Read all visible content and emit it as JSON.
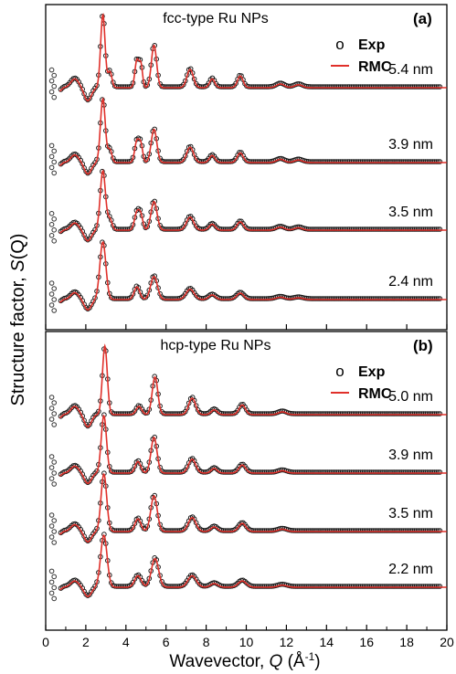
{
  "chart_data": {
    "type": "line",
    "ylabel_prefix": "Structure factor, ",
    "ylabel_symbol": "S",
    "ylabel_suffix": "(Q)",
    "xlabel_prefix": "Wavevector, ",
    "xlabel_symbol": "Q",
    "xlabel_suffix": " (Å",
    "xlabel_exp": "-1",
    "xlabel_close": ")",
    "xlim": [
      0,
      20
    ],
    "x_ticks": [
      0,
      2,
      4,
      6,
      8,
      10,
      12,
      14,
      16,
      18,
      20
    ],
    "panels": [
      {
        "label": "(a)",
        "title": "fcc-type Ru NPs",
        "legend": {
          "exp": "Exp",
          "rmc": "RMC",
          "exp_marker": "o"
        },
        "traces": [
          {
            "size": "5.4 nm",
            "peaks": [
              [
                2.85,
                1.0,
                0.11
              ],
              [
                3.2,
                0.22,
                0.1
              ],
              [
                4.55,
                0.38,
                0.1
              ],
              [
                4.75,
                0.3,
                0.08
              ],
              [
                5.4,
                0.58,
                0.13
              ],
              [
                7.2,
                0.25,
                0.16
              ],
              [
                8.3,
                0.12,
                0.13
              ],
              [
                9.7,
                0.16,
                0.14
              ],
              [
                11.7,
                0.05,
                0.2
              ],
              [
                12.6,
                0.04,
                0.2
              ]
            ]
          },
          {
            "size": "3.9 nm",
            "peaks": [
              [
                2.85,
                1.0,
                0.12
              ],
              [
                3.2,
                0.2,
                0.1
              ],
              [
                4.55,
                0.34,
                0.11
              ],
              [
                4.75,
                0.26,
                0.09
              ],
              [
                5.4,
                0.52,
                0.14
              ],
              [
                7.2,
                0.24,
                0.17
              ],
              [
                8.3,
                0.11,
                0.14
              ],
              [
                9.7,
                0.15,
                0.15
              ],
              [
                11.7,
                0.05,
                0.2
              ],
              [
                12.6,
                0.04,
                0.2
              ]
            ]
          },
          {
            "size": "3.5 nm",
            "peaks": [
              [
                2.85,
                1.0,
                0.13
              ],
              [
                3.2,
                0.18,
                0.11
              ],
              [
                4.55,
                0.3,
                0.12
              ],
              [
                4.75,
                0.22,
                0.1
              ],
              [
                5.4,
                0.48,
                0.15
              ],
              [
                7.2,
                0.22,
                0.18
              ],
              [
                8.3,
                0.1,
                0.15
              ],
              [
                9.7,
                0.14,
                0.16
              ],
              [
                11.7,
                0.05,
                0.2
              ],
              [
                12.6,
                0.04,
                0.2
              ]
            ]
          },
          {
            "size": "2.4 nm",
            "peaks": [
              [
                2.85,
                1.0,
                0.15
              ],
              [
                4.55,
                0.22,
                0.14
              ],
              [
                5.4,
                0.4,
                0.17
              ],
              [
                7.2,
                0.18,
                0.2
              ],
              [
                8.3,
                0.08,
                0.17
              ],
              [
                9.7,
                0.11,
                0.18
              ],
              [
                11.7,
                0.04,
                0.22
              ],
              [
                12.6,
                0.03,
                0.22
              ]
            ]
          }
        ]
      },
      {
        "label": "(b)",
        "title": "hcp-type Ru NPs",
        "legend": {
          "exp": "Exp",
          "rmc": "RMC",
          "exp_marker": "o"
        },
        "traces": [
          {
            "size": "5.0 nm",
            "peaks": [
              [
                2.95,
                1.0,
                0.12
              ],
              [
                4.65,
                0.12,
                0.14
              ],
              [
                5.45,
                0.55,
                0.14
              ],
              [
                7.3,
                0.24,
                0.17
              ],
              [
                8.4,
                0.07,
                0.15
              ],
              [
                9.8,
                0.14,
                0.16
              ],
              [
                11.8,
                0.04,
                0.2
              ]
            ]
          },
          {
            "size": "3.9 nm",
            "peaks": [
              [
                2.9,
                1.0,
                0.13
              ],
              [
                4.6,
                0.2,
                0.14
              ],
              [
                5.4,
                0.62,
                0.15
              ],
              [
                7.3,
                0.24,
                0.18
              ],
              [
                8.4,
                0.08,
                0.15
              ],
              [
                9.8,
                0.14,
                0.17
              ],
              [
                11.8,
                0.04,
                0.2
              ]
            ]
          },
          {
            "size": "3.5 nm",
            "peaks": [
              [
                2.9,
                1.0,
                0.14
              ],
              [
                4.6,
                0.22,
                0.15
              ],
              [
                5.4,
                0.62,
                0.16
              ],
              [
                7.3,
                0.24,
                0.19
              ],
              [
                8.4,
                0.08,
                0.16
              ],
              [
                9.8,
                0.14,
                0.18
              ],
              [
                11.8,
                0.04,
                0.21
              ]
            ]
          },
          {
            "size": "2.2 nm",
            "peaks": [
              [
                2.9,
                1.0,
                0.16
              ],
              [
                4.6,
                0.22,
                0.17
              ],
              [
                5.45,
                0.55,
                0.18
              ],
              [
                7.3,
                0.22,
                0.21
              ],
              [
                8.4,
                0.07,
                0.18
              ],
              [
                9.8,
                0.12,
                0.2
              ],
              [
                11.8,
                0.04,
                0.22
              ]
            ]
          }
        ]
      }
    ]
  }
}
